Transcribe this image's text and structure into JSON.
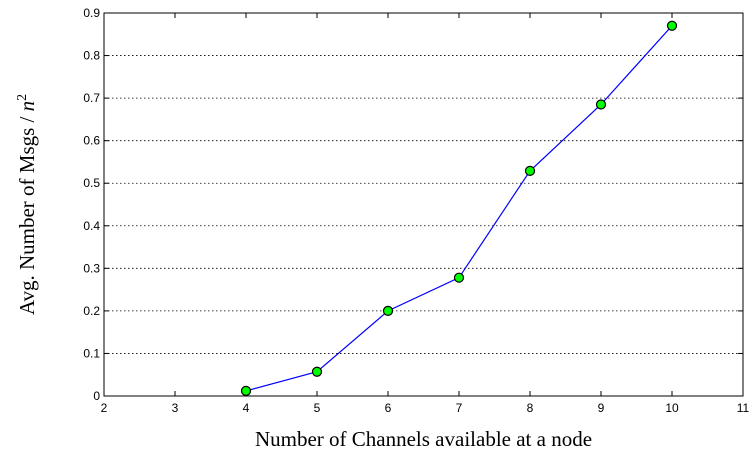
{
  "chart_data": {
    "type": "line",
    "title": "",
    "xlabel": "Number of Channels available at a node",
    "ylabel": "Avg. Number of Msgs / ",
    "ylabel_var": "n",
    "ylabel_sup": "2",
    "xlim": [
      2,
      11
    ],
    "ylim": [
      0,
      0.9
    ],
    "xticks": [
      2,
      3,
      4,
      5,
      6,
      7,
      8,
      9,
      10,
      11
    ],
    "yticks": [
      0,
      0.1,
      0.2,
      0.3,
      0.4,
      0.5,
      0.6,
      0.7,
      0.8,
      0.9
    ],
    "ytick_labels": [
      "0",
      "0.1",
      "0.2",
      "0.3",
      "0.4",
      "0.5",
      "0.6",
      "0.7",
      "0.8",
      "0.9"
    ],
    "grid": "horizontal dotted",
    "series": [
      {
        "x": [
          4,
          5,
          6,
          7,
          8,
          9,
          10
        ],
        "y": [
          0.012,
          0.057,
          0.2,
          0.278,
          0.529,
          0.685,
          0.87
        ],
        "line_color": "#0000ff",
        "marker": "circle",
        "marker_fill": "#00ff00",
        "marker_edge": "#000000"
      }
    ]
  }
}
